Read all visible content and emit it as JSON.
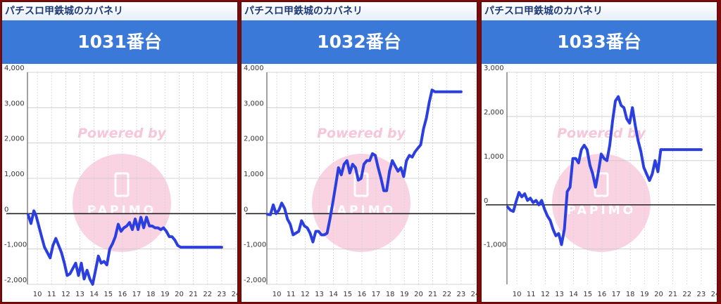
{
  "panels": [
    {
      "machine_name": "パチスロ甲鉄城のカバネリ",
      "unit_label": "1031番台",
      "watermark_text": "Powered by",
      "watermark_logo": "PAPIMO",
      "line_color": "#2b3fe0",
      "chart_data": {
        "type": "line",
        "xlim": [
          9.3,
          24
        ],
        "ylim": [
          -2000,
          4000
        ],
        "x_ticks": [
          10,
          11,
          12,
          13,
          14,
          15,
          16,
          17,
          18,
          19,
          20,
          21,
          22,
          23,
          24
        ],
        "y_ticks": [
          4000,
          3000,
          2000,
          1000,
          0,
          -1000,
          -2000
        ],
        "y_tick_labels": [
          "4,000",
          "3,000",
          "2,000",
          "1,000",
          "0",
          "-1,000",
          "-2,000"
        ],
        "grid": true,
        "x": [
          9.35,
          9.55,
          9.75,
          9.9,
          10.1,
          10.3,
          10.5,
          10.7,
          10.9,
          11.1,
          11.3,
          11.5,
          11.7,
          11.9,
          12.1,
          12.3,
          12.5,
          12.7,
          12.9,
          13.1,
          13.3,
          13.5,
          13.7,
          13.9,
          14.1,
          14.3,
          14.5,
          14.7,
          14.9,
          15.1,
          15.3,
          15.5,
          15.7,
          15.9,
          16.1,
          16.3,
          16.5,
          16.7,
          16.9,
          17.1,
          17.3,
          17.5,
          17.7,
          17.9,
          18.1,
          18.3,
          18.5,
          18.7,
          18.9,
          19.1,
          19.3,
          19.5,
          19.7,
          19.9,
          20.1,
          20.3,
          20.5,
          20.7,
          20.9,
          21.1,
          21.3,
          21.5,
          22,
          22.5,
          23
        ],
        "y": [
          -30,
          -280,
          80,
          -50,
          -350,
          -650,
          -950,
          -1100,
          -1250,
          -900,
          -700,
          -900,
          -1100,
          -1400,
          -1750,
          -1700,
          -1550,
          -1400,
          -1750,
          -1400,
          -1850,
          -1600,
          -1850,
          -2000,
          -1600,
          -1200,
          -1400,
          -1350,
          -1450,
          -1000,
          -850,
          -650,
          -300,
          -500,
          -400,
          -350,
          -250,
          -450,
          -150,
          -450,
          -100,
          -400,
          -100,
          -350,
          -350,
          -400,
          -400,
          -450,
          -400,
          -500,
          -650,
          -650,
          -750,
          -900,
          -950,
          -950,
          -950,
          -950,
          -950,
          -950,
          -950,
          -950,
          -950,
          -950,
          -950
        ]
      }
    },
    {
      "machine_name": "パチスロ甲鉄城のカバネリ",
      "unit_label": "1032番台",
      "watermark_text": "Powered by",
      "watermark_logo": "PAPIMO",
      "line_color": "#2b3fe0",
      "chart_data": {
        "type": "line",
        "xlim": [
          9.3,
          24
        ],
        "ylim": [
          -2000,
          4000
        ],
        "x_ticks": [
          10,
          11,
          12,
          13,
          14,
          15,
          16,
          17,
          18,
          19,
          20,
          21,
          22,
          23,
          24
        ],
        "y_ticks": [
          4000,
          3000,
          2000,
          1000,
          0,
          -1000,
          -2000
        ],
        "y_tick_labels": [
          "4,000",
          "3,000",
          "2,000",
          "1,000",
          "0",
          "-1,000",
          "-2,000"
        ],
        "grid": true,
        "x": [
          9.35,
          9.55,
          9.75,
          9.95,
          10.15,
          10.35,
          10.55,
          10.75,
          10.95,
          11.15,
          11.35,
          11.55,
          11.75,
          11.95,
          12.15,
          12.35,
          12.55,
          12.75,
          12.95,
          13.15,
          13.35,
          13.55,
          13.75,
          13.95,
          14.15,
          14.35,
          14.55,
          14.75,
          14.95,
          15.15,
          15.35,
          15.55,
          15.75,
          15.95,
          16.15,
          16.35,
          16.55,
          16.75,
          16.95,
          17.15,
          17.35,
          17.55,
          17.75,
          17.95,
          18.15,
          18.35,
          18.55,
          18.75,
          18.95,
          19.15,
          19.35,
          19.55,
          19.75,
          19.95,
          20.15,
          20.35,
          20.55,
          20.75,
          20.95,
          21.15,
          21.35,
          21.55,
          21.75,
          21.95,
          22.15,
          22.35,
          22.55,
          22.75,
          23
        ],
        "y": [
          -20,
          -30,
          250,
          0,
          100,
          300,
          150,
          -150,
          -300,
          -600,
          -550,
          -500,
          -200,
          -350,
          -400,
          -550,
          -800,
          -500,
          -500,
          -600,
          -600,
          -550,
          -150,
          300,
          800,
          1300,
          1100,
          1400,
          1500,
          1150,
          1400,
          1300,
          950,
          1000,
          1400,
          1500,
          1500,
          1700,
          1650,
          1300,
          1000,
          650,
          650,
          1200,
          1500,
          1350,
          1200,
          1300,
          1050,
          1500,
          1650,
          1600,
          1750,
          1850,
          1950,
          2400,
          2700,
          3150,
          3500,
          3450,
          3450,
          3450,
          3450,
          3450,
          3450,
          3450,
          3450,
          3450,
          3450
        ]
      }
    },
    {
      "machine_name": "パチスロ甲鉄城のカバネリ",
      "unit_label": "1033番台",
      "watermark_text": "Powered by",
      "watermark_logo": "PAPIMO",
      "line_color": "#2b3fe0",
      "chart_data": {
        "type": "line",
        "xlim": [
          9.3,
          24
        ],
        "ylim": [
          -1800,
          3000
        ],
        "x_ticks": [
          10,
          11,
          12,
          13,
          14,
          15,
          16,
          17,
          18,
          19,
          20,
          21,
          22,
          23,
          24
        ],
        "y_ticks": [
          3000,
          2000,
          1000,
          0,
          -1000
        ],
        "y_tick_labels": [
          "3,000",
          "2,000",
          "1,000",
          "0",
          "-1,000"
        ],
        "grid": true,
        "x": [
          9.35,
          9.55,
          9.75,
          9.95,
          10.15,
          10.35,
          10.55,
          10.75,
          10.95,
          11.15,
          11.35,
          11.55,
          11.75,
          11.95,
          12.15,
          12.35,
          12.55,
          12.75,
          12.95,
          13.15,
          13.35,
          13.55,
          13.75,
          13.95,
          14.15,
          14.35,
          14.55,
          14.75,
          14.95,
          15.15,
          15.35,
          15.55,
          15.75,
          15.95,
          16.15,
          16.35,
          16.55,
          16.75,
          16.95,
          17.15,
          17.35,
          17.55,
          17.75,
          17.95,
          18.15,
          18.35,
          18.55,
          18.75,
          18.95,
          19.15,
          19.35,
          19.55,
          19.75,
          19.95,
          20.15,
          20.35,
          20.55,
          20.75,
          20.95,
          21.15,
          21.35,
          21.55,
          21.75,
          21.95,
          22.2,
          22.6,
          23
        ],
        "y": [
          -50,
          -120,
          -150,
          80,
          280,
          180,
          250,
          100,
          150,
          50,
          100,
          0,
          100,
          -100,
          -250,
          -350,
          -550,
          -700,
          -650,
          -900,
          -550,
          300,
          400,
          1050,
          1050,
          950,
          1250,
          1350,
          1250,
          900,
          700,
          400,
          750,
          1150,
          1050,
          1000,
          1350,
          1900,
          2350,
          2450,
          2250,
          2200,
          1950,
          1850,
          2200,
          1800,
          1450,
          1200,
          850,
          700,
          550,
          700,
          1000,
          750,
          1250,
          1250,
          1250,
          1250,
          1250,
          1250,
          1250,
          1250,
          1250,
          1250,
          1250,
          1250,
          1250
        ]
      }
    }
  ]
}
